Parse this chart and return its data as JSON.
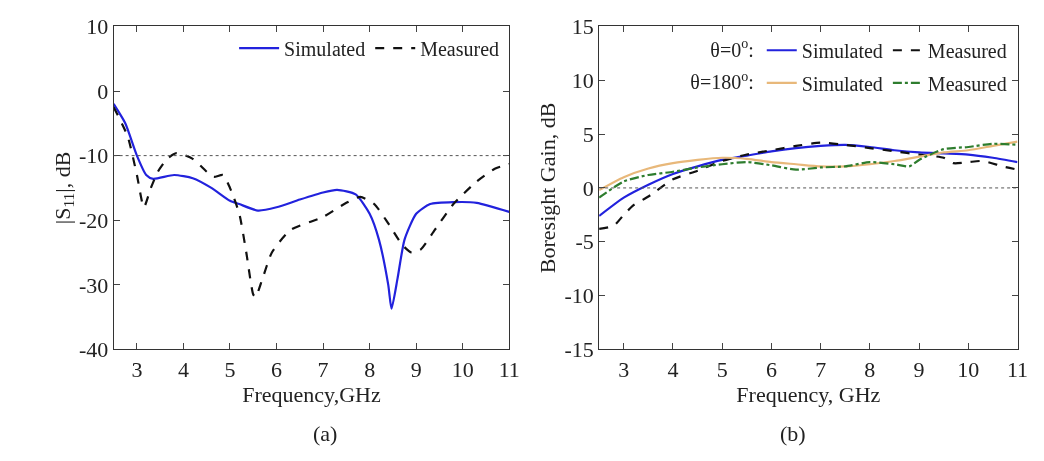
{
  "chart_data": [
    {
      "type": "line",
      "xlabel": "Frequency,GHz",
      "ylabel": "|S$_{11}$|, dB",
      "annotations": [
        "(a)"
      ],
      "xlim": [
        2.5,
        11
      ],
      "xticks": [
        3,
        4,
        5,
        6,
        7,
        8,
        9,
        10,
        11
      ],
      "ylim": [
        -40,
        10
      ],
      "yticks": [
        -40,
        -30,
        -20,
        -10,
        0,
        10
      ],
      "legend": "top right",
      "ref_lines": [
        {
          "axis": "y",
          "value": -10,
          "color": "#555555",
          "line_style": "dotted"
        }
      ],
      "series": [
        {
          "name": "Simulated",
          "color": "#2222dd",
          "line_style": "solid",
          "x": [
            2.5,
            2.75,
            3.0,
            3.2,
            3.35,
            3.8,
            4.2,
            4.6,
            5.0,
            5.2,
            5.6,
            6.0,
            6.5,
            7.0,
            7.3,
            7.7,
            8.0,
            8.2,
            8.4,
            8.47,
            8.6,
            8.75,
            9.0,
            9.3,
            9.8,
            10.3,
            11
          ],
          "values": [
            -2,
            -5,
            -10,
            -13,
            -13.6,
            -13,
            -13.5,
            -15,
            -17,
            -17.5,
            -18.5,
            -18,
            -16.8,
            -15.7,
            -15.3,
            -16,
            -19,
            -23,
            -30,
            -33.7,
            -29,
            -23,
            -19,
            -17.5,
            -17.2,
            -17.3,
            -18.7
          ]
        },
        {
          "name": "Measured",
          "color": "#111111",
          "line_style": "dashed",
          "x": [
            2.5,
            2.8,
            3.0,
            3.15,
            3.3,
            3.45,
            3.65,
            3.85,
            4.2,
            4.5,
            4.65,
            4.85,
            5.0,
            5.2,
            5.35,
            5.5,
            5.55,
            5.7,
            5.9,
            6.3,
            7.0,
            7.5,
            7.8,
            8.1,
            8.4,
            8.7,
            8.9,
            9.1,
            9.4,
            9.8,
            10.3,
            10.7,
            11
          ],
          "values": [
            -2.5,
            -7,
            -13,
            -18,
            -15,
            -12.5,
            -10.5,
            -9.6,
            -10.5,
            -12.5,
            -13.3,
            -13,
            -15,
            -19,
            -25,
            -31.5,
            -31.9,
            -29,
            -25,
            -21.5,
            -19.5,
            -17.3,
            -16.4,
            -17.5,
            -20.5,
            -23.8,
            -25,
            -24.5,
            -21.5,
            -17.5,
            -14,
            -12,
            -11.3
          ]
        }
      ]
    },
    {
      "type": "line",
      "xlabel": "Frequency, GHz",
      "ylabel": "Boresight Gain, dB",
      "annotations": [
        "(b)",
        "θ=0$^{o}$:",
        "θ=180$^{o}$:"
      ],
      "xlim": [
        2.5,
        11
      ],
      "xticks": [
        3,
        4,
        5,
        6,
        7,
        8,
        9,
        10,
        11
      ],
      "ylim": [
        -15,
        15
      ],
      "yticks": [
        -15,
        -10,
        -5,
        0,
        5,
        10,
        15
      ],
      "legend": "top",
      "ref_lines": [
        {
          "axis": "y",
          "value": 0,
          "color": "#555555",
          "line_style": "dotted"
        }
      ],
      "series": [
        {
          "name": "Simulated",
          "color": "#2222dd",
          "line_style": "solid",
          "x": [
            2.5,
            3.0,
            3.5,
            4.0,
            4.5,
            5.0,
            5.5,
            6.0,
            6.5,
            7.0,
            7.5,
            8.0,
            8.5,
            9.0,
            9.5,
            10.0,
            10.5,
            11
          ],
          "values": [
            -2.6,
            -0.9,
            0.3,
            1.3,
            2.0,
            2.6,
            3.0,
            3.4,
            3.7,
            3.9,
            4.0,
            3.8,
            3.5,
            3.3,
            3.2,
            3.1,
            2.8,
            2.4
          ]
        },
        {
          "name": "Measured",
          "color": "#111111",
          "line_style": "dashed",
          "x": [
            2.5,
            2.8,
            3.0,
            3.2,
            3.5,
            4.0,
            4.5,
            5.0,
            5.5,
            6.0,
            6.5,
            7.0,
            7.5,
            8.0,
            8.5,
            9.0,
            9.5,
            9.7,
            10.0,
            10.3,
            10.7,
            11
          ],
          "values": [
            -3.8,
            -3.5,
            -2.5,
            -1.6,
            -0.8,
            0.8,
            1.6,
            2.5,
            3.1,
            3.5,
            3.9,
            4.2,
            4.0,
            3.7,
            3.4,
            3.1,
            2.8,
            2.3,
            2.4,
            2.5,
            2.0,
            1.7
          ]
        },
        {
          "name": "Simulated",
          "color": "#e8b87a",
          "line_style": "solid",
          "x": [
            2.5,
            3.0,
            3.5,
            4.0,
            4.5,
            5.0,
            5.5,
            6.0,
            6.5,
            7.0,
            7.5,
            8.0,
            8.5,
            9.0,
            9.5,
            10.0,
            10.5,
            11
          ],
          "values": [
            -0.2,
            1.0,
            1.8,
            2.3,
            2.6,
            2.8,
            2.7,
            2.4,
            2.2,
            2.0,
            2.0,
            2.2,
            2.5,
            2.9,
            3.3,
            3.5,
            3.9,
            4.3
          ]
        },
        {
          "name": "Measured",
          "color": "#2e7d2e",
          "line_style": "dashdot",
          "x": [
            2.5,
            3.0,
            3.5,
            4.0,
            4.5,
            5.0,
            5.5,
            6.0,
            6.5,
            7.0,
            7.5,
            8.0,
            8.5,
            8.8,
            9.0,
            9.5,
            10.0,
            10.5,
            11
          ],
          "values": [
            -0.9,
            0.6,
            1.2,
            1.5,
            1.9,
            2.2,
            2.4,
            2.1,
            1.7,
            1.9,
            2.0,
            2.4,
            2.2,
            2.0,
            2.6,
            3.6,
            3.8,
            4.1,
            4.0
          ]
        }
      ]
    }
  ]
}
